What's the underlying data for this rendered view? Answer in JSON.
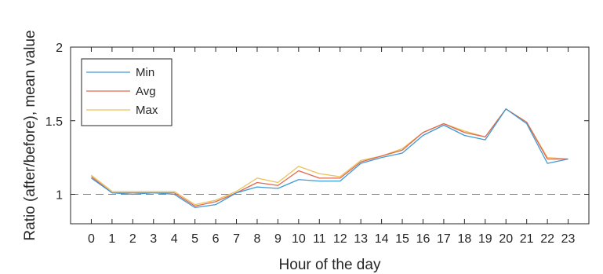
{
  "chart_data": {
    "type": "line",
    "xlabel": "Hour of the day",
    "ylabel": "Ratio (after/before), mean value",
    "x": [
      0,
      1,
      2,
      3,
      4,
      5,
      6,
      7,
      8,
      9,
      10,
      11,
      12,
      13,
      14,
      15,
      16,
      17,
      18,
      19,
      20,
      21,
      22,
      23
    ],
    "xlim": [
      -1,
      24
    ],
    "ylim": [
      0.8,
      2.0
    ],
    "yticks": [
      1,
      1.5,
      2
    ],
    "ytick_labels": [
      "1",
      "1.5",
      "2"
    ],
    "reference_line": {
      "y": 1.0,
      "style": "dashed",
      "color": "#808080"
    },
    "legend_position": "top-left",
    "grid": false,
    "series": [
      {
        "name": "Min",
        "color": "#3d9ad6",
        "values": [
          1.11,
          1.01,
          1.0,
          1.01,
          1.0,
          0.91,
          0.93,
          1.01,
          1.05,
          1.04,
          1.1,
          1.09,
          1.09,
          1.21,
          1.25,
          1.28,
          1.4,
          1.47,
          1.4,
          1.37,
          1.58,
          1.48,
          1.21,
          1.24
        ]
      },
      {
        "name": "Avg",
        "color": "#e0684f",
        "values": [
          1.12,
          1.01,
          1.01,
          1.01,
          1.01,
          0.92,
          0.95,
          1.01,
          1.08,
          1.06,
          1.16,
          1.11,
          1.11,
          1.22,
          1.26,
          1.3,
          1.42,
          1.48,
          1.42,
          1.39,
          1.58,
          1.49,
          1.24,
          1.24
        ]
      },
      {
        "name": "Max",
        "color": "#eac25a",
        "values": [
          1.13,
          1.02,
          1.02,
          1.02,
          1.02,
          0.93,
          0.96,
          1.02,
          1.11,
          1.08,
          1.19,
          1.14,
          1.12,
          1.23,
          1.26,
          1.31,
          1.42,
          1.48,
          1.43,
          1.39,
          1.58,
          1.49,
          1.25,
          1.24
        ]
      }
    ]
  }
}
